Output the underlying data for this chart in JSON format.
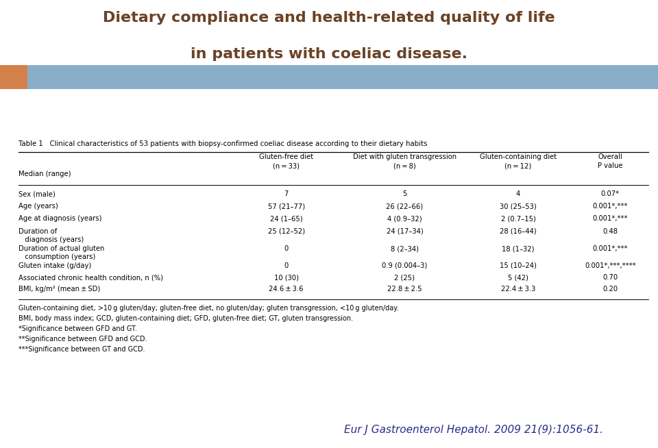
{
  "title_line1": "Dietary compliance and health-related quality of life",
  "title_line2": "in patients with coeliac disease.",
  "title_color": "#6B4226",
  "bar_orange": "#D4804A",
  "bar_blue": "#8AAEC8",
  "table_title": "Table 1   Clinical characteristics of 53 patients with biopsy-confirmed coeliac disease according to their dietary habits",
  "col_headers": [
    "Gluten-free diet\n(n = 33)",
    "Diet with gluten transgression\n(n = 8)",
    "Gluten-containing diet\n(n = 12)",
    "Overall\nP value"
  ],
  "row_header": "Median (range)",
  "rows": [
    [
      "Sex (male)",
      "7",
      "5",
      "4",
      "0.07*"
    ],
    [
      "Age (years)",
      "57 (21–77)",
      "26 (22–66)",
      "30 (25–53)",
      "0.001*,***"
    ],
    [
      "Age at diagnosis (years)",
      "24 (1–65)",
      "4 (0.9–32)",
      "2 (0.7–15)",
      "0.001*,***"
    ],
    [
      "Duration of\n   diagnosis (years)",
      "25 (12–52)",
      "24 (17–34)",
      "28 (16–44)",
      "0.48"
    ],
    [
      "Duration of actual gluten\n   consumption (years)",
      "0",
      "8 (2–34)",
      "18 (1–32)",
      "0.001*,***"
    ],
    [
      "Gluten intake (g/day)",
      "0",
      "0.9 (0.004–3)",
      "15 (10–24)",
      "0.001*,***,****"
    ],
    [
      "Associated chronic health condition, n (%)",
      "10 (30)",
      "2 (25)",
      "5 (42)",
      "0.70"
    ],
    [
      "BMI, kg/m² (mean ± SD)",
      "24.6 ± 3.6",
      "22.8 ± 2.5",
      "22.4 ± 3.3",
      "0.20"
    ]
  ],
  "footnotes": [
    "Gluten-containing diet, >10 g gluten/day; gluten-free diet, no gluten/day; gluten transgression, <10 g gluten/day.",
    "BMI, body mass index; GCD, gluten-containing diet; GFD, gluten-free diet; GT, gluten transgression.",
    "*Significance between GFD and GT.",
    "**Significance between GFD and GCD.",
    "***Significance between GT and GCD."
  ],
  "citation": "Eur J Gastroenterol Hepatol. 2009 21(9):1056-61.",
  "bg_color": "#FFFFFF"
}
